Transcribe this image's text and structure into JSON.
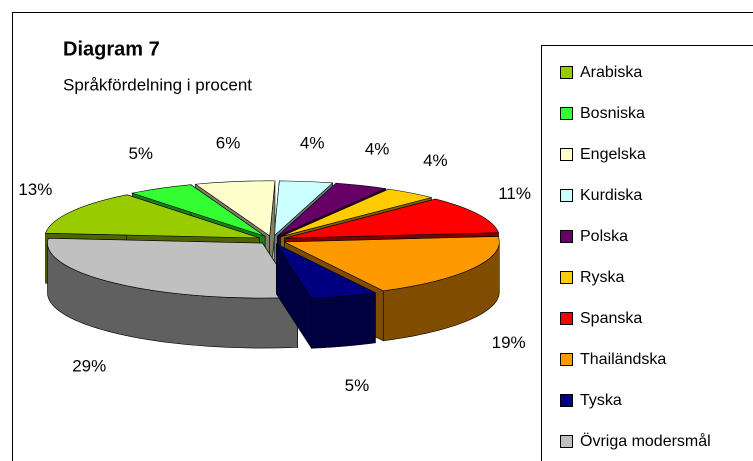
{
  "chart_data": {
    "type": "pie3d",
    "title": "Diagram 7",
    "subtitle": "Språkfördelning i procent",
    "categories": [
      "Arabiska",
      "Bosniska",
      "Engelska",
      "Kurdiska",
      "Polska",
      "Ryska",
      "Spanska",
      "Thailändska",
      "Tyska",
      "Övriga modersmål"
    ],
    "values": [
      13,
      5,
      6,
      4,
      4,
      4,
      11,
      19,
      5,
      29
    ],
    "value_labels": [
      "13%",
      "5%",
      "6%",
      "4%",
      "4%",
      "4%",
      "11%",
      "19%",
      "5%",
      "29%"
    ],
    "colors": [
      "#99cc00",
      "#33ff33",
      "#ffffcc",
      "#ccffff",
      "#660066",
      "#ffcc00",
      "#ff0000",
      "#ff9900",
      "#000080",
      "#c0c0c0"
    ],
    "legend": "right"
  }
}
